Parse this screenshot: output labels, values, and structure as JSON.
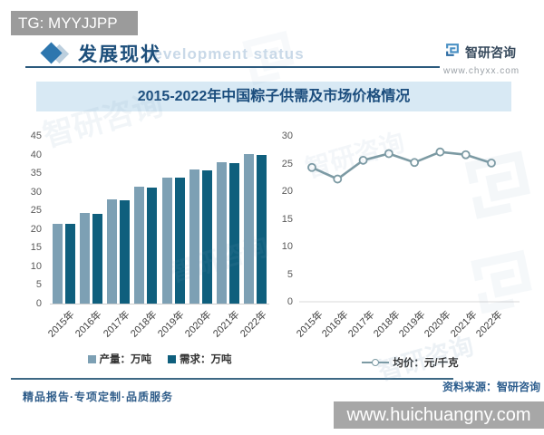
{
  "badge": {
    "text": "TG: MYYJJPP"
  },
  "header": {
    "title": "发展现状",
    "watermark": "development status",
    "logo_name": "智研咨询",
    "logo_site": "www.chyxx.com"
  },
  "banner": {
    "title": "2015-2022年中国粽子供需及市场价格情况"
  },
  "chart_data": [
    {
      "type": "bar",
      "categories": [
        "2015年",
        "2016年",
        "2017年",
        "2018年",
        "2019年",
        "2020年",
        "2021年",
        "2022年"
      ],
      "series": [
        {
          "name": "产量：万吨",
          "color": "#7da0b4",
          "values": [
            21.5,
            24.4,
            28.0,
            31.4,
            33.9,
            35.9,
            38.0,
            40.2
          ]
        },
        {
          "name": "需求：万吨",
          "color": "#0f5f7d",
          "values": [
            21.3,
            24.2,
            27.8,
            31.2,
            33.7,
            35.7,
            37.8,
            40.0
          ]
        }
      ],
      "ylim": [
        0,
        45
      ],
      "yticks": [
        45,
        40,
        35,
        30,
        25,
        20,
        15,
        10,
        5,
        0
      ],
      "grid": false,
      "legend_position": "bottom",
      "xlabel_rotation": -45
    },
    {
      "type": "line",
      "categories": [
        "2015年",
        "2016年",
        "2017年",
        "2018年",
        "2019年",
        "2020年",
        "2021年",
        "2022年"
      ],
      "series": [
        {
          "name": "均价：元/千克",
          "color": "#7c9aa3",
          "values": [
            24.3,
            22.2,
            25.6,
            26.8,
            25.2,
            27.1,
            26.6,
            25.1
          ]
        }
      ],
      "ylim": [
        0,
        30
      ],
      "yticks": [
        30,
        25,
        20,
        15,
        10,
        5,
        0
      ],
      "grid": false,
      "legend_position": "bottom",
      "marker": "open-circle",
      "xlabel_rotation": -45
    }
  ],
  "source": {
    "label": "资料来源：智研咨询"
  },
  "footer": {
    "slogan": "精品报告·专项定制·品质服务",
    "website": "www.huichuangny.com"
  },
  "watermark": {
    "brand": "智研咨询"
  }
}
